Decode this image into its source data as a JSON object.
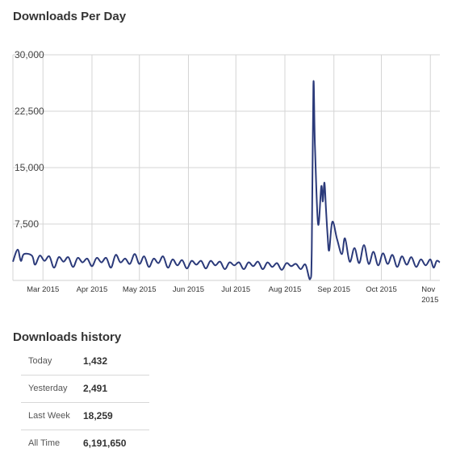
{
  "chart_data": {
    "type": "line",
    "title": "Downloads Per Day",
    "xlabel": "",
    "ylabel": "",
    "ylim": [
      0,
      30000
    ],
    "y_ticks": [
      "30,000",
      "22,500",
      "15,000",
      "7,500"
    ],
    "x_tick_labels": [
      {
        "date": "2015-03-01",
        "label": "Mar 2015"
      },
      {
        "date": "2015-04-01",
        "label": "Apr 2015"
      },
      {
        "date": "2015-05-01",
        "label": "May 2015"
      },
      {
        "date": "2015-06-01",
        "label": "Jun 2015"
      },
      {
        "date": "2015-07-01",
        "label": "Jul 2015"
      },
      {
        "date": "2015-08-01",
        "label": "Aug 2015"
      },
      {
        "date": "2015-09-01",
        "label": "Sep 2015"
      },
      {
        "date": "2015-10-01",
        "label": "Oct 2015"
      },
      {
        "date": "2015-11-01",
        "label": "Nov 2015"
      }
    ],
    "x_range": [
      "2015-02-10",
      "2015-11-07"
    ],
    "grid": true,
    "line_color": "#2b3a7a",
    "series": [
      {
        "points": [
          [
            "2015-02-10",
            2500
          ],
          [
            "2015-02-13",
            4100
          ],
          [
            "2015-02-15",
            2600
          ],
          [
            "2015-02-17",
            3500
          ],
          [
            "2015-02-22",
            3300
          ],
          [
            "2015-02-24",
            2100
          ],
          [
            "2015-02-27",
            3300
          ],
          [
            "2015-03-02",
            2600
          ],
          [
            "2015-03-05",
            3200
          ],
          [
            "2015-03-08",
            1700
          ],
          [
            "2015-03-11",
            3100
          ],
          [
            "2015-03-14",
            2500
          ],
          [
            "2015-03-17",
            3100
          ],
          [
            "2015-03-20",
            1800
          ],
          [
            "2015-03-23",
            3000
          ],
          [
            "2015-03-26",
            2400
          ],
          [
            "2015-03-29",
            2900
          ],
          [
            "2015-04-01",
            1900
          ],
          [
            "2015-04-04",
            3000
          ],
          [
            "2015-04-07",
            2400
          ],
          [
            "2015-04-10",
            3000
          ],
          [
            "2015-04-13",
            1700
          ],
          [
            "2015-04-16",
            3400
          ],
          [
            "2015-04-19",
            2400
          ],
          [
            "2015-04-22",
            2900
          ],
          [
            "2015-04-25",
            2200
          ],
          [
            "2015-04-28",
            3500
          ],
          [
            "2015-05-01",
            2200
          ],
          [
            "2015-05-04",
            3200
          ],
          [
            "2015-05-07",
            1800
          ],
          [
            "2015-05-10",
            2900
          ],
          [
            "2015-05-13",
            2300
          ],
          [
            "2015-05-16",
            3200
          ],
          [
            "2015-05-19",
            1700
          ],
          [
            "2015-05-22",
            2800
          ],
          [
            "2015-05-25",
            2000
          ],
          [
            "2015-05-28",
            2700
          ],
          [
            "2015-05-31",
            1600
          ],
          [
            "2015-06-03",
            2600
          ],
          [
            "2015-06-06",
            2100
          ],
          [
            "2015-06-09",
            2600
          ],
          [
            "2015-06-12",
            1600
          ],
          [
            "2015-06-15",
            2600
          ],
          [
            "2015-06-18",
            2000
          ],
          [
            "2015-06-21",
            2500
          ],
          [
            "2015-06-24",
            1500
          ],
          [
            "2015-06-27",
            2400
          ],
          [
            "2015-06-30",
            2000
          ],
          [
            "2015-07-03",
            2400
          ],
          [
            "2015-07-06",
            1500
          ],
          [
            "2015-07-09",
            2400
          ],
          [
            "2015-07-12",
            1900
          ],
          [
            "2015-07-15",
            2500
          ],
          [
            "2015-07-18",
            1500
          ],
          [
            "2015-07-21",
            2400
          ],
          [
            "2015-07-24",
            1800
          ],
          [
            "2015-07-27",
            2300
          ],
          [
            "2015-07-30",
            1400
          ],
          [
            "2015-08-02",
            2300
          ],
          [
            "2015-08-05",
            1900
          ],
          [
            "2015-08-08",
            2200
          ],
          [
            "2015-08-11",
            1500
          ],
          [
            "2015-08-14",
            2100
          ],
          [
            "2015-08-17",
            200
          ],
          [
            "2015-08-18",
            4200
          ],
          [
            "2015-08-19",
            26000
          ],
          [
            "2015-08-20",
            18000
          ],
          [
            "2015-08-22",
            7500
          ],
          [
            "2015-08-24",
            12500
          ],
          [
            "2015-08-25",
            10500
          ],
          [
            "2015-08-26",
            13000
          ],
          [
            "2015-08-27",
            9500
          ],
          [
            "2015-08-28",
            6000
          ],
          [
            "2015-08-29",
            4000
          ],
          [
            "2015-08-31",
            7800
          ],
          [
            "2015-09-03",
            5500
          ],
          [
            "2015-09-06",
            3500
          ],
          [
            "2015-09-08",
            5600
          ],
          [
            "2015-09-11",
            2500
          ],
          [
            "2015-09-14",
            4300
          ],
          [
            "2015-09-17",
            2300
          ],
          [
            "2015-09-20",
            4700
          ],
          [
            "2015-09-23",
            2200
          ],
          [
            "2015-09-26",
            3800
          ],
          [
            "2015-09-29",
            2000
          ],
          [
            "2015-10-02",
            3600
          ],
          [
            "2015-10-05",
            2200
          ],
          [
            "2015-10-08",
            3400
          ],
          [
            "2015-10-11",
            1800
          ],
          [
            "2015-10-14",
            3200
          ],
          [
            "2015-10-17",
            2100
          ],
          [
            "2015-10-20",
            3100
          ],
          [
            "2015-10-23",
            1800
          ],
          [
            "2015-10-26",
            2800
          ],
          [
            "2015-10-29",
            2000
          ],
          [
            "2015-11-01",
            2800
          ],
          [
            "2015-11-03",
            1700
          ],
          [
            "2015-11-05",
            2600
          ],
          [
            "2015-11-07",
            2400
          ]
        ]
      }
    ]
  },
  "history": {
    "title": "Downloads history",
    "rows": [
      {
        "label": "Today",
        "value": "1,432"
      },
      {
        "label": "Yesterday",
        "value": "2,491"
      },
      {
        "label": "Last Week",
        "value": "18,259"
      },
      {
        "label": "All Time",
        "value": "6,191,650"
      }
    ]
  }
}
